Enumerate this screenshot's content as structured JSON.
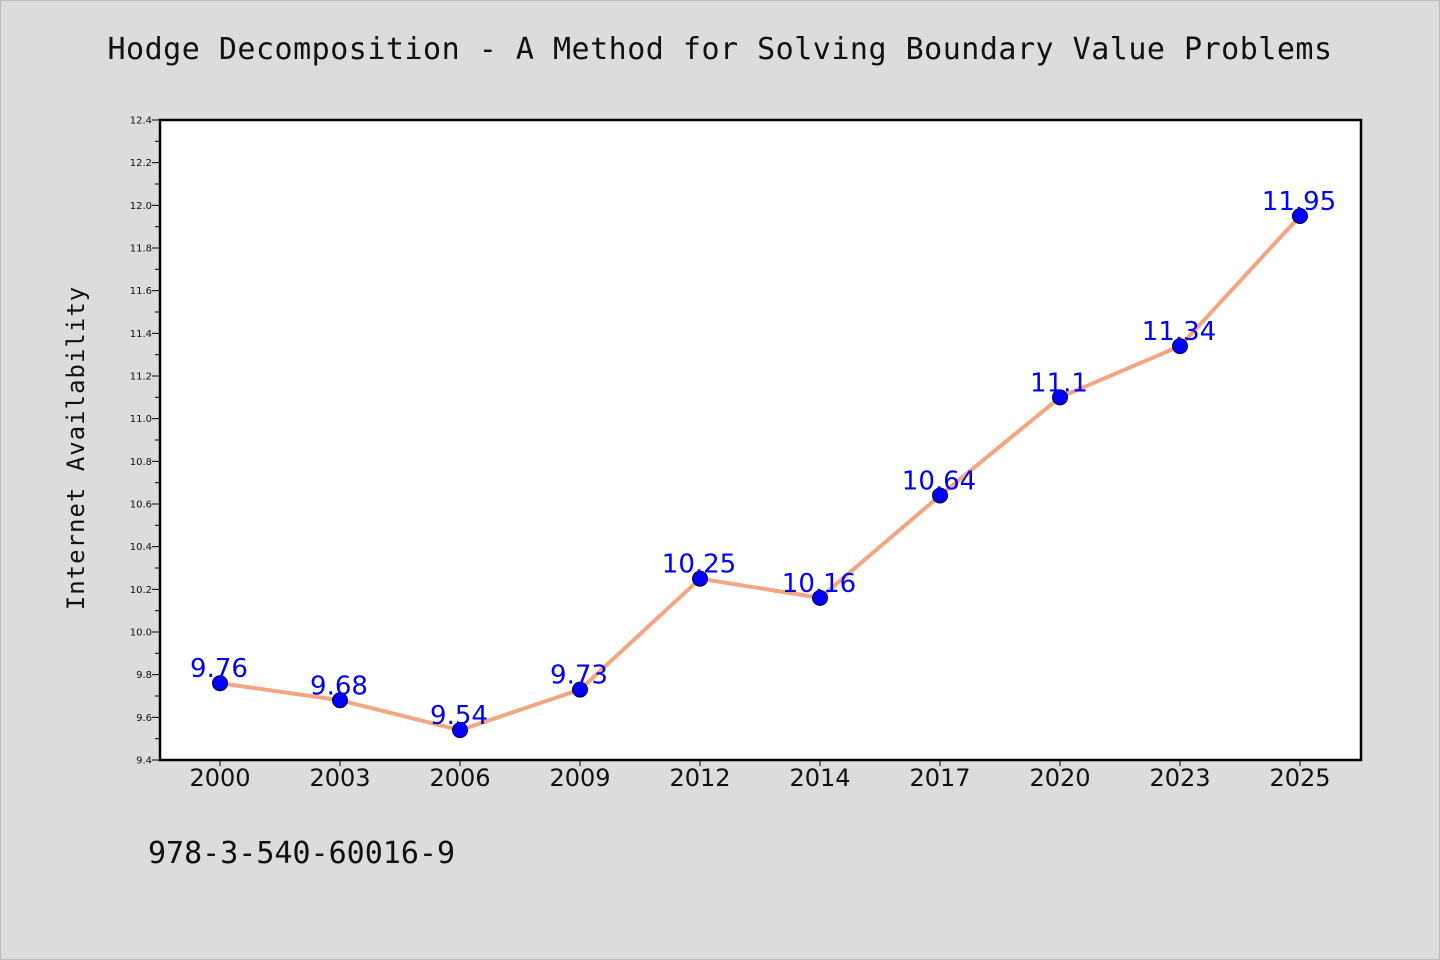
{
  "chart_data": {
    "type": "line",
    "title": "Hodge Decomposition - A Method for Solving Boundary Value Problems",
    "xlabel": "",
    "ylabel": "Internet Availability",
    "categories": [
      "2000",
      "2003",
      "2006",
      "2009",
      "2012",
      "2014",
      "2017",
      "2020",
      "2023",
      "2025"
    ],
    "series": [
      {
        "values": [
          9.76,
          9.68,
          9.54,
          9.73,
          10.25,
          10.16,
          10.64,
          11.1,
          11.34,
          11.95
        ],
        "data_labels": [
          "9.76",
          "9.68",
          "9.54",
          "9.73",
          "10.25",
          "10.16",
          "10.64",
          "11.1",
          "11.34",
          "11.95"
        ],
        "line_color": "#f4a582",
        "marker_color": "#0000ff",
        "label_color": "#0000ff"
      }
    ],
    "ylim": [
      9.4,
      12.4
    ],
    "yticks": [
      "9.4",
      "9.6",
      "9.8",
      "10.0",
      "10.2",
      "10.4",
      "10.6",
      "10.8",
      "11.0",
      "11.2",
      "11.4",
      "11.6",
      "11.8",
      "12.0",
      "12.2",
      "12.4"
    ],
    "grid": false,
    "legend": "none"
  },
  "footer": {
    "isbn": "978-3-540-60016-9"
  }
}
